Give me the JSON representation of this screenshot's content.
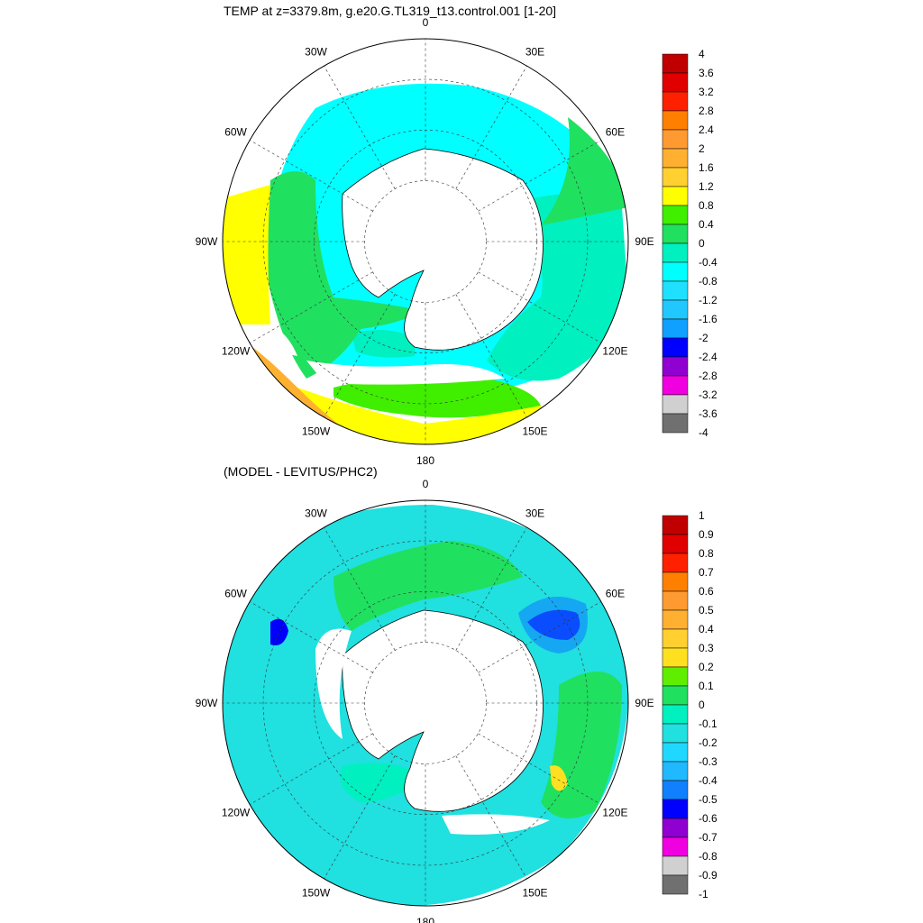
{
  "panels": [
    {
      "title": "TEMP at z=3379.8m, g.e20.G.TL319_t13.control.001 [1-20]",
      "longitude_labels": {
        "0": "0",
        "30E": "30E",
        "60E": "60E",
        "90E": "90E",
        "120E": "120E",
        "150E": "150E",
        "180": "180",
        "150W": "150W",
        "120W": "120W",
        "90W": "90W",
        "60W": "60W",
        "30W": "30W"
      },
      "colorbar": {
        "labels": [
          "4",
          "3.6",
          "3.2",
          "2.8",
          "2.4",
          "2",
          "1.6",
          "1.2",
          "0.8",
          "0.4",
          "0",
          "-0.4",
          "-0.8",
          "-1.2",
          "-1.6",
          "-2",
          "-2.4",
          "-2.8",
          "-3.2",
          "-3.6",
          "-4"
        ],
        "colors": [
          "#c00000",
          "#e00000",
          "#ff2000",
          "#ff8000",
          "#ff9a30",
          "#ffb030",
          "#ffd030",
          "#ffff00",
          "#40ee00",
          "#20e060",
          "#00f0c0",
          "#00ffff",
          "#20e0ff",
          "#20c8ff",
          "#10a0ff",
          "#0000ff",
          "#9000d0",
          "#f000e0",
          "#d0d0d0",
          "#707070"
        ]
      }
    },
    {
      "title": "(MODEL - LEVITUS/PHC2)",
      "longitude_labels": {
        "0": "0",
        "30E": "30E",
        "60E": "60E",
        "90E": "90E",
        "120E": "120E",
        "150E": "150E",
        "180": "180",
        "150W": "150W",
        "120W": "120W",
        "90W": "90W",
        "60W": "60W",
        "30W": "30W"
      },
      "colorbar": {
        "labels": [
          "1",
          "0.9",
          "0.8",
          "0.7",
          "0.6",
          "0.5",
          "0.4",
          "0.3",
          "0.2",
          "0.1",
          "0",
          "-0.1",
          "-0.2",
          "-0.3",
          "-0.4",
          "-0.5",
          "-0.6",
          "-0.7",
          "-0.8",
          "-0.9",
          "-1"
        ],
        "colors": [
          "#c00000",
          "#e00000",
          "#ff2000",
          "#ff8000",
          "#ff9a30",
          "#ffb030",
          "#ffd030",
          "#ffe020",
          "#60ee00",
          "#20e060",
          "#00f0c0",
          "#20e0e0",
          "#20d8ff",
          "#20b8ff",
          "#1080ff",
          "#0000ff",
          "#9000d0",
          "#f000e0",
          "#d0d0d0",
          "#707070"
        ]
      }
    }
  ],
  "map_colors": {
    "land": "#ffffff",
    "outline": "#000000",
    "grid": "#333333"
  }
}
